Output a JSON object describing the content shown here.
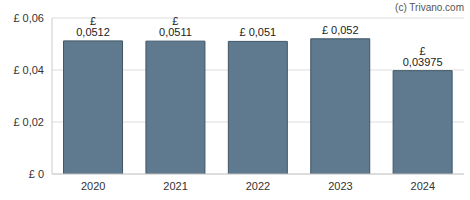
{
  "chart_data": {
    "type": "bar",
    "categories": [
      "2020",
      "2021",
      "2022",
      "2023",
      "2024"
    ],
    "values": [
      0.0512,
      0.0511,
      0.051,
      0.052,
      0.03975
    ],
    "value_labels": [
      "£ 0,0512",
      "£ 0,0511",
      "£ 0,051",
      "£ 0,052",
      "£ 0,03975"
    ],
    "data_labels": true,
    "color": "#5f7a8e",
    "ylim": [
      0,
      0.06
    ],
    "yticks": [
      {
        "value": 0,
        "label": "£ 0"
      },
      {
        "value": 0.02,
        "label": "£ 0,02"
      },
      {
        "value": 0.04,
        "label": "£ 0,04"
      },
      {
        "value": 0.06,
        "label": "£ 0,06"
      }
    ],
    "grid": true,
    "annotations": [
      "(c) Trivano.com"
    ]
  }
}
